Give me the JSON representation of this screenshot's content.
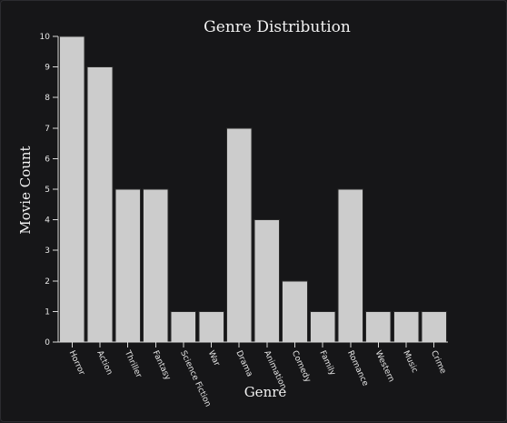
{
  "chart_data": {
    "type": "bar",
    "title": "Genre Distribution",
    "xlabel": "Genre",
    "ylabel": "Movie Count",
    "categories": [
      "Horror",
      "Action",
      "Thriller",
      "Fantasy",
      "Science Fiction",
      "War",
      "Drama",
      "Animation",
      "Comedy",
      "Family",
      "Romance",
      "Western",
      "Music",
      "Crime"
    ],
    "values": [
      10,
      9,
      5,
      5,
      1,
      1,
      7,
      4,
      2,
      1,
      5,
      1,
      1,
      1
    ],
    "ylim": [
      0,
      10
    ],
    "yticks": [
      0,
      1,
      2,
      3,
      4,
      5,
      6,
      7,
      8,
      9,
      10
    ],
    "grid": false,
    "colors": {
      "bar": "#cccccc",
      "background": "#161618",
      "text": "#f2f2f2"
    }
  }
}
